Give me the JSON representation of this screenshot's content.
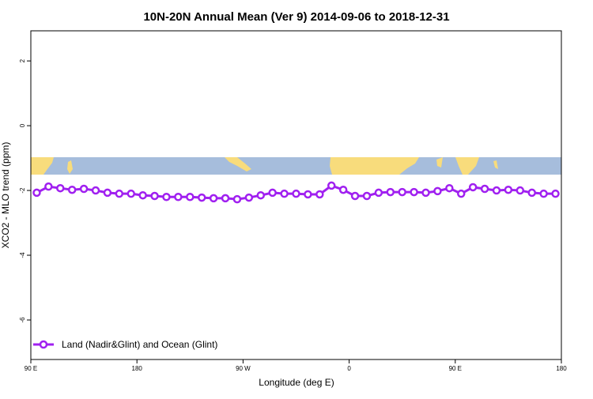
{
  "chart_data": {
    "type": "line",
    "title": "10N-20N Annual Mean (Ver 9)   2014-09-06 to 2018-12-31",
    "x_label": "Longitude (deg E)",
    "y_label": "XCO2 - MLO trend (ppm)",
    "x": [
      95,
      105,
      115,
      125,
      135,
      145,
      155,
      165,
      175,
      185,
      195,
      205,
      215,
      225,
      235,
      245,
      255,
      265,
      275,
      285,
      295,
      305,
      315,
      325,
      335,
      345,
      355,
      365,
      375,
      385,
      395,
      405,
      415,
      425,
      435,
      445,
      455,
      465,
      475,
      485,
      495,
      505,
      515,
      525,
      535
    ],
    "series": [
      {
        "name": "Land (Nadir&Glint) and Ocean (Glint)",
        "color": "#a020f0",
        "values": [
          -2.07,
          -1.88,
          -1.93,
          -1.98,
          -1.95,
          -2.0,
          -2.07,
          -2.1,
          -2.1,
          -2.15,
          -2.17,
          -2.2,
          -2.2,
          -2.2,
          -2.22,
          -2.24,
          -2.24,
          -2.27,
          -2.22,
          -2.15,
          -2.07,
          -2.1,
          -2.1,
          -2.12,
          -2.12,
          -1.85,
          -1.98,
          -2.17,
          -2.17,
          -2.07,
          -2.05,
          -2.05,
          -2.05,
          -2.07,
          -2.02,
          -1.93,
          -2.1,
          -1.9,
          -1.95,
          -2.0,
          -1.98,
          -2.0,
          -2.07,
          -2.1,
          -2.1
        ]
      }
    ],
    "xlim": [
      90,
      540
    ],
    "xticks": [
      {
        "value": 90,
        "label": "90 E"
      },
      {
        "value": 180,
        "label": "180"
      },
      {
        "value": 270,
        "label": "90 W"
      },
      {
        "value": 360,
        "label": "0"
      },
      {
        "value": 450,
        "label": "90 E"
      },
      {
        "value": 540,
        "label": "180"
      }
    ],
    "ylim": [
      -7.22,
      2.93
    ],
    "yticks": [
      2,
      0,
      -2,
      -4,
      -6
    ],
    "legend": "bottomleft"
  }
}
